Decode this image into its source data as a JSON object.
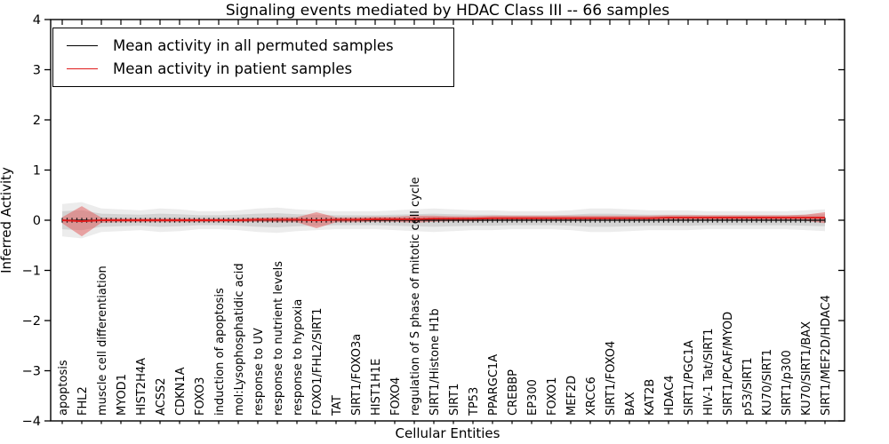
{
  "chart_data": {
    "type": "line",
    "title": "Signaling events mediated by HDAC Class III -- 66 samples",
    "xlabel": "Cellular Entities",
    "ylabel": "Inferred Activity",
    "ylim": [
      -4,
      4
    ],
    "ytick_labels": [
      "4",
      "3",
      "2",
      "1",
      "0",
      "−1",
      "−2",
      "−3",
      "−4"
    ],
    "ytick_values": [
      4,
      3,
      2,
      1,
      0,
      -1,
      -2,
      -3,
      -4
    ],
    "grid": false,
    "legend_position": "upper left",
    "categories": [
      "apoptosis",
      "FHL2",
      "muscle cell differentiation",
      "MYOD1",
      "HIST2H4A",
      "ACSS2",
      "CDKN1A",
      "FOXO3",
      "induction of apoptosis",
      "mol:Lysophosphatidic acid",
      "response to UV",
      "response to nutrient levels",
      "response to hypoxia",
      "FOXO1/FHL2/SIRT1",
      "TAT",
      "SIRT1/FOXO3a",
      "HIST1H1E",
      "FOXO4",
      "regulation of S phase of mitotic cell cycle",
      "SIRT1/Histone H1b",
      "SIRT1",
      "TP53",
      "PPARGC1A",
      "CREBBP",
      "EP300",
      "FOXO1",
      "MEF2D",
      "XRCC6",
      "SIRT1/FOXO4",
      "BAX",
      "KAT2B",
      "HDAC4",
      "SIRT1/PGC1A",
      "HIV-1 Tat/SIRT1",
      "SIRT1/PCAF/MYOD",
      "p53/SIRT1",
      "KU70/SIRT1",
      "SIRT1/p300",
      "KU70/SIRT1/BAX",
      "SIRT1/MEF2D/HDAC4"
    ],
    "series": [
      {
        "name": "Mean activity in all permuted samples",
        "color": "#000000",
        "values": [
          0,
          0,
          0,
          0,
          0,
          0,
          0,
          0,
          0,
          0,
          0,
          0,
          0,
          0,
          0,
          0,
          0,
          0,
          0,
          0,
          0,
          0,
          0,
          0,
          0,
          0,
          0,
          0,
          0,
          0,
          0,
          0,
          0,
          0,
          0,
          0,
          0,
          0,
          0,
          0
        ]
      },
      {
        "name": "Mean activity in patient samples",
        "color": "#e01b1b",
        "values": [
          0,
          -0.02,
          0,
          0,
          0,
          0,
          0,
          0,
          0,
          0,
          0.01,
          0.01,
          0.01,
          0,
          0.01,
          0.01,
          0.02,
          0.02,
          0.02,
          0.03,
          0.03,
          0.03,
          0.04,
          0.04,
          0.04,
          0.04,
          0.04,
          0.04,
          0.04,
          0.04,
          0.04,
          0.05,
          0.05,
          0.05,
          0.05,
          0.05,
          0.05,
          0.05,
          0.05,
          0.05
        ]
      }
    ],
    "bands": [
      {
        "name": "permuted samples range",
        "color": "#bfbfbf",
        "center_series": 0,
        "half_widths": [
          0.18,
          0.2,
          0.13,
          0.12,
          0.11,
          0.13,
          0.12,
          0.1,
          0.1,
          0.11,
          0.13,
          0.14,
          0.12,
          0.11,
          0.1,
          0.1,
          0.1,
          0.11,
          0.12,
          0.13,
          0.12,
          0.11,
          0.11,
          0.1,
          0.1,
          0.1,
          0.11,
          0.13,
          0.13,
          0.12,
          0.11,
          0.11,
          0.11,
          0.1,
          0.1,
          0.1,
          0.1,
          0.1,
          0.11,
          0.12
        ]
      },
      {
        "name": "patient samples range",
        "color": "#e25555",
        "center_series": 1,
        "half_widths": [
          0.06,
          0.3,
          0.05,
          0.04,
          0.04,
          0.04,
          0.04,
          0.04,
          0.04,
          0.04,
          0.04,
          0.05,
          0.05,
          0.16,
          0.05,
          0.05,
          0.05,
          0.05,
          0.07,
          0.06,
          0.05,
          0.05,
          0.05,
          0.05,
          0.05,
          0.05,
          0.05,
          0.05,
          0.05,
          0.05,
          0.05,
          0.05,
          0.05,
          0.05,
          0.05,
          0.05,
          0.05,
          0.05,
          0.06,
          0.11
        ]
      }
    ],
    "legend": {
      "entries": [
        {
          "label": "Mean activity in all permuted samples",
          "color": "#000000"
        },
        {
          "label": "Mean activity in patient samples",
          "color": "#e01b1b"
        }
      ]
    },
    "colors": {
      "frame": "#000000",
      "permuted_band": "#bfbfbf",
      "patient_band": "#e25555",
      "permuted_line": "#000000",
      "patient_line": "#e01b1b"
    }
  }
}
